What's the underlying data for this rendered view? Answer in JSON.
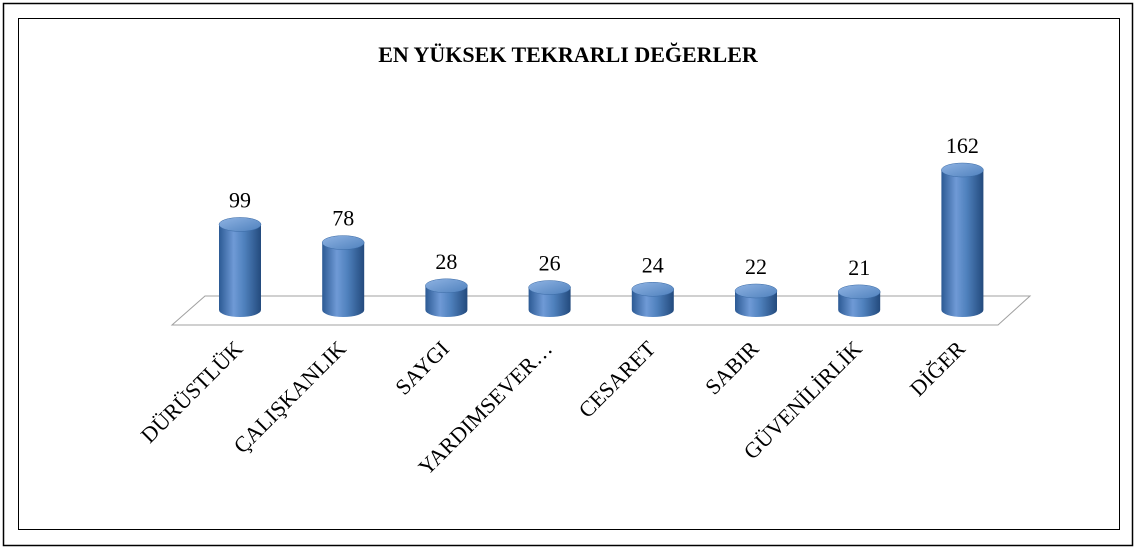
{
  "chart_data": {
    "type": "bar3d",
    "title": "EN YÜKSEK TEKRARLI DEĞERLER",
    "categories": [
      "DÜRÜSTLÜK",
      "ÇALIŞKANLIK",
      "SAYGI",
      "YARDIMSEVER…",
      "CESARET",
      "SABIR",
      "GÜVENİLİRLİK",
      "DİĞER"
    ],
    "values": [
      99,
      78,
      28,
      26,
      24,
      22,
      21,
      162
    ],
    "color": "#4f81bd"
  }
}
